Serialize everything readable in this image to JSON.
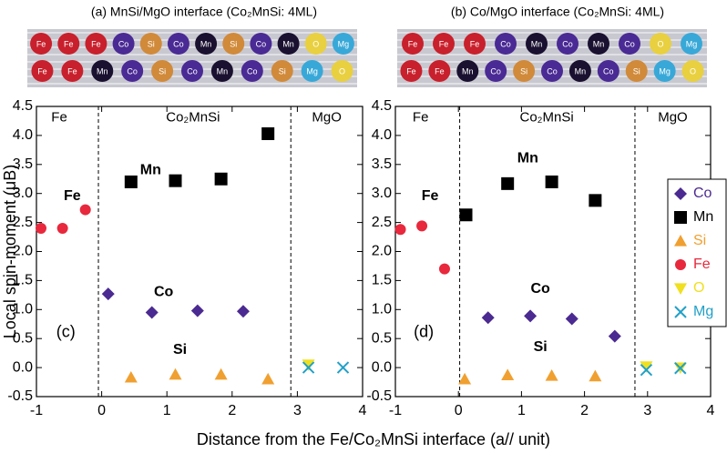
{
  "xlabel": "Distance from the Fe/Co₂MnSi interface (a// unit)",
  "chart_data": [
    {
      "type": "scatter",
      "title": "(a) MnSi/MgO interface (Co₂MnSi: 4ML)",
      "ylabel": "Local spin-moment (μB)",
      "panel_label": "(c)",
      "region_labels": [
        "Fe",
        "Co₂MnSi",
        "MgO"
      ],
      "vlines": [
        -0.05,
        2.9
      ],
      "element_labels": [
        "Mn",
        "Fe",
        "Co",
        "Si"
      ],
      "atoms_top": [
        {
          "label": "Fe",
          "color": "#c8202c"
        },
        {
          "label": "Fe",
          "color": "#c8202c"
        },
        {
          "label": "Fe",
          "color": "#c8202c"
        },
        {
          "label": "Co",
          "color": "#4a2a94"
        },
        {
          "label": "Si",
          "color": "#d08a3a"
        },
        {
          "label": "Co",
          "color": "#4a2a94"
        },
        {
          "label": "Mn",
          "color": "#1a1030"
        },
        {
          "label": "Si",
          "color": "#d08a3a"
        },
        {
          "label": "Co",
          "color": "#4a2a94"
        },
        {
          "label": "Mn",
          "color": "#1a1030"
        },
        {
          "label": "O",
          "color": "#e8d040"
        },
        {
          "label": "Mg",
          "color": "#38a8d8"
        }
      ],
      "atoms_bottom": [
        {
          "label": "Fe",
          "color": "#c8202c"
        },
        {
          "label": "Fe",
          "color": "#c8202c"
        },
        {
          "label": "Mn",
          "color": "#1a1030"
        },
        {
          "label": "Co",
          "color": "#4a2a94"
        },
        {
          "label": "Si",
          "color": "#d08a3a"
        },
        {
          "label": "Co",
          "color": "#4a2a94"
        },
        {
          "label": "Mn",
          "color": "#1a1030"
        },
        {
          "label": "Co",
          "color": "#4a2a94"
        },
        {
          "label": "Si",
          "color": "#d08a3a"
        },
        {
          "label": "Mg",
          "color": "#38a8d8"
        },
        {
          "label": "O",
          "color": "#e8d040"
        }
      ],
      "xlim": [
        -1,
        4
      ],
      "ylim": [
        -0.5,
        4.5
      ],
      "xticks": [
        -1,
        0,
        1,
        2,
        3,
        4
      ],
      "yticks": [
        -0.5,
        {
          "value": 0,
          "label": "0.0"
        },
        0.5,
        {
          "value": 1,
          "label": "1.0"
        },
        1.5,
        {
          "value": 2,
          "label": "2.0"
        },
        2.5,
        {
          "value": 3,
          "label": "3.0"
        },
        3.5,
        {
          "value": 4,
          "label": "4.0"
        },
        4.5
      ],
      "legend": false,
      "series": [
        {
          "name": "Co",
          "color": "#4b2a91",
          "marker": "diamond",
          "x": [
            0.1,
            0.77,
            1.47,
            2.17
          ],
          "values": [
            1.27,
            0.95,
            0.98,
            0.97
          ]
        },
        {
          "name": "Mn",
          "color": "#000000",
          "marker": "square",
          "x": [
            0.45,
            1.13,
            1.83,
            2.55
          ],
          "values": [
            3.2,
            3.22,
            3.25,
            4.03
          ]
        },
        {
          "name": "Si",
          "color": "#f0a030",
          "marker": "triangle-up",
          "x": [
            0.45,
            1.13,
            1.83,
            2.55
          ],
          "values": [
            -0.17,
            -0.12,
            -0.12,
            -0.2
          ]
        },
        {
          "name": "Fe",
          "color": "#e8283c",
          "marker": "circle",
          "x": [
            -0.93,
            -0.6,
            -0.25
          ],
          "values": [
            2.4,
            2.4,
            2.72
          ]
        },
        {
          "name": "O",
          "color": "#f0e020",
          "marker": "triangle-down",
          "x": [
            3.17
          ],
          "values": [
            0.05
          ]
        },
        {
          "name": "Mg",
          "color": "#20a0c8",
          "marker": "x",
          "x": [
            3.17,
            3.7
          ],
          "values": [
            0.0,
            0.0
          ]
        }
      ]
    },
    {
      "type": "scatter",
      "title": "(b) Co/MgO interface (Co₂MnSi: 4ML)",
      "panel_label": "(d)",
      "region_labels": [
        "Fe",
        "Co₂MnSi",
        "MgO"
      ],
      "vlines": [
        0.02,
        2.8
      ],
      "element_labels": [
        "Mn",
        "Fe",
        "Co",
        "Si"
      ],
      "atoms_top": [
        {
          "label": "Fe",
          "color": "#c8202c"
        },
        {
          "label": "Fe",
          "color": "#c8202c"
        },
        {
          "label": "Fe",
          "color": "#c8202c"
        },
        {
          "label": "Co",
          "color": "#4a2a94"
        },
        {
          "label": "Mn",
          "color": "#1a1030"
        },
        {
          "label": "Co",
          "color": "#4a2a94"
        },
        {
          "label": "Mn",
          "color": "#1a1030"
        },
        {
          "label": "Co",
          "color": "#4a2a94"
        },
        {
          "label": "O",
          "color": "#e8d040"
        },
        {
          "label": "Mg",
          "color": "#38a8d8"
        }
      ],
      "atoms_bottom": [
        {
          "label": "Fe",
          "color": "#c8202c"
        },
        {
          "label": "Fe",
          "color": "#c8202c"
        },
        {
          "label": "Mn",
          "color": "#1a1030"
        },
        {
          "label": "Co",
          "color": "#4a2a94"
        },
        {
          "label": "Si",
          "color": "#d08a3a"
        },
        {
          "label": "Co",
          "color": "#4a2a94"
        },
        {
          "label": "Mn",
          "color": "#1a1030"
        },
        {
          "label": "Co",
          "color": "#4a2a94"
        },
        {
          "label": "Si",
          "color": "#d08a3a"
        },
        {
          "label": "Mg",
          "color": "#38a8d8"
        },
        {
          "label": "O",
          "color": "#e8d040"
        }
      ],
      "xlim": [
        -1,
        4
      ],
      "ylim": [
        -0.5,
        4.5
      ],
      "xticks": [
        -1,
        0,
        1,
        2,
        3,
        4
      ],
      "yticks": [
        -0.5,
        {
          "value": 0,
          "label": "0.0"
        },
        0.5,
        {
          "value": 1,
          "label": "1.0"
        },
        1.5,
        {
          "value": 2,
          "label": "2.0"
        },
        2.5,
        {
          "value": 3,
          "label": "3.0"
        },
        3.5,
        {
          "value": 4,
          "label": "4.0"
        },
        4.5
      ],
      "legend": true,
      "series": [
        {
          "name": "Co",
          "color": "#4b2a91",
          "marker": "diamond",
          "x": [
            0.47,
            1.14,
            1.8,
            2.48
          ],
          "values": [
            0.86,
            0.89,
            0.84,
            0.54
          ]
        },
        {
          "name": "Mn",
          "color": "#000000",
          "marker": "square",
          "x": [
            0.12,
            0.78,
            1.48,
            2.17
          ],
          "values": [
            2.63,
            3.17,
            3.2,
            2.88
          ]
        },
        {
          "name": "Si",
          "color": "#f0a030",
          "marker": "triangle-up",
          "x": [
            0.1,
            0.78,
            1.48,
            2.17
          ],
          "values": [
            -0.2,
            -0.13,
            -0.14,
            -0.15
          ]
        },
        {
          "name": "Fe",
          "color": "#e8283c",
          "marker": "circle",
          "x": [
            -0.92,
            -0.58,
            -0.22
          ],
          "values": [
            2.38,
            2.44,
            1.7
          ]
        },
        {
          "name": "O",
          "color": "#f0e020",
          "marker": "triangle-down",
          "x": [
            2.98,
            3.52
          ],
          "values": [
            0.02,
            0.0
          ]
        },
        {
          "name": "Mg",
          "color": "#20a0c8",
          "marker": "x",
          "x": [
            2.98,
            3.52
          ],
          "values": [
            -0.04,
            -0.01
          ]
        }
      ]
    }
  ]
}
